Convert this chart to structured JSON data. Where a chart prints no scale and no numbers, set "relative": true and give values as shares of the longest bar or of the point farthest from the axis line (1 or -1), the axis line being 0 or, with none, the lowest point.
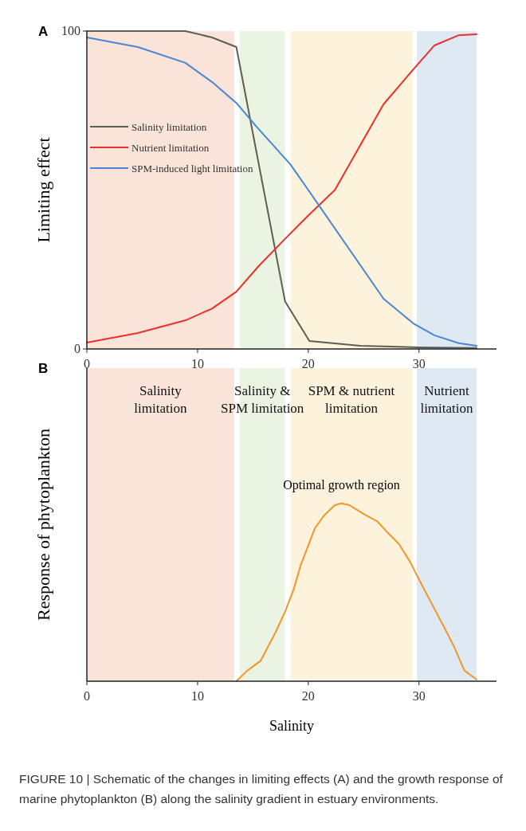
{
  "chart_data": [
    {
      "type": "line",
      "title": "A",
      "ylabel": "Limiting effect",
      "xlim": [
        0,
        37
      ],
      "xticks": [
        0,
        10,
        20,
        30
      ],
      "ylim": [
        0,
        100
      ],
      "yticks": [
        0,
        100
      ],
      "legend": "left",
      "grid": false,
      "series": [
        {
          "name": "Salinity limitation",
          "color": "#5e5e56",
          "x": [
            0,
            8.9,
            11.3,
            13.5,
            17.9,
            20.1,
            24.7,
            30,
            35.2
          ],
          "values": [
            100,
            100,
            98,
            95,
            15,
            2.5,
            1,
            0.5,
            0.3
          ]
        },
        {
          "name": "Nutrient limitation",
          "color": "#e8312a",
          "x": [
            0,
            4.6,
            8.9,
            11.3,
            13.5,
            15.5,
            18,
            20,
            22.4,
            26.8,
            29.5,
            31.4,
            33.6,
            35.2
          ],
          "values": [
            2,
            5,
            9,
            12.7,
            18,
            26,
            35,
            42,
            50,
            77,
            88,
            95.5,
            98.7,
            99
          ]
        },
        {
          "name": "SPM-induced light limitation",
          "color": "#4a86d0",
          "x": [
            0,
            4.6,
            8.9,
            11.3,
            13.5,
            15.3,
            18.4,
            20.1,
            26.8,
            29.5,
            31.4,
            33.6,
            35.2
          ],
          "values": [
            98,
            95,
            90,
            84,
            77.4,
            70,
            58,
            49.5,
            15.8,
            8,
            4.3,
            1.8,
            1
          ]
        }
      ],
      "bands": [
        {
          "axis": "x",
          "from": 0,
          "to": 13.3,
          "color": "#fae3d9"
        },
        {
          "axis": "x",
          "from": 13.8,
          "to": 17.9,
          "color": "#ebf3e3"
        },
        {
          "axis": "x",
          "from": 18.4,
          "to": 29.4,
          "color": "#fdf3dc"
        },
        {
          "axis": "x",
          "from": 29.8,
          "to": 35.2,
          "color": "#dee9f4"
        }
      ]
    },
    {
      "type": "line",
      "title": "B",
      "ylabel": "Response of phytoplankton",
      "xlabel": "Salinity",
      "xlim": [
        0,
        37
      ],
      "xticks": [
        0,
        10,
        20,
        30
      ],
      "relative": true,
      "grid": false,
      "series": [
        {
          "color": "#f0962a",
          "x": [
            13.5,
            14.5,
            15.7,
            17,
            17.9,
            18.7,
            19.3,
            20.6,
            21.4,
            22.4,
            23,
            23.7,
            25,
            26.2,
            27.1,
            28.2,
            29.2,
            30.1,
            31.2,
            32.3,
            33.2,
            34.1,
            35.2
          ],
          "values": [
            0,
            0.06,
            0.115,
            0.27,
            0.39,
            0.52,
            0.65,
            0.86,
            0.93,
            0.99,
            1,
            0.99,
            0.94,
            0.9,
            0.84,
            0.77,
            0.67,
            0.56,
            0.43,
            0.3,
            0.19,
            0.06,
            0.01
          ]
        }
      ],
      "bands": [
        {
          "axis": "x",
          "from": 0,
          "to": 13.3,
          "color": "#fae3d9",
          "label": "Salinity limitation"
        },
        {
          "axis": "x",
          "from": 13.8,
          "to": 17.9,
          "color": "#ebf3e3",
          "label": "Salinity & SPM limitation"
        },
        {
          "axis": "x",
          "from": 18.4,
          "to": 29.4,
          "color": "#fdf3dc",
          "label": "SPM & nutrient limitation"
        },
        {
          "axis": "x",
          "from": 29.8,
          "to": 35.2,
          "color": "#dee9f4",
          "label": "Nutrient limitation"
        }
      ],
      "annotations": [
        "Optimal growth region",
        "FIGURE 10 | Schematic of the changes in limiting effects (A) and the growth response of marine phytoplankton (B) along the salinity gradient in estuary environments."
      ]
    }
  ]
}
